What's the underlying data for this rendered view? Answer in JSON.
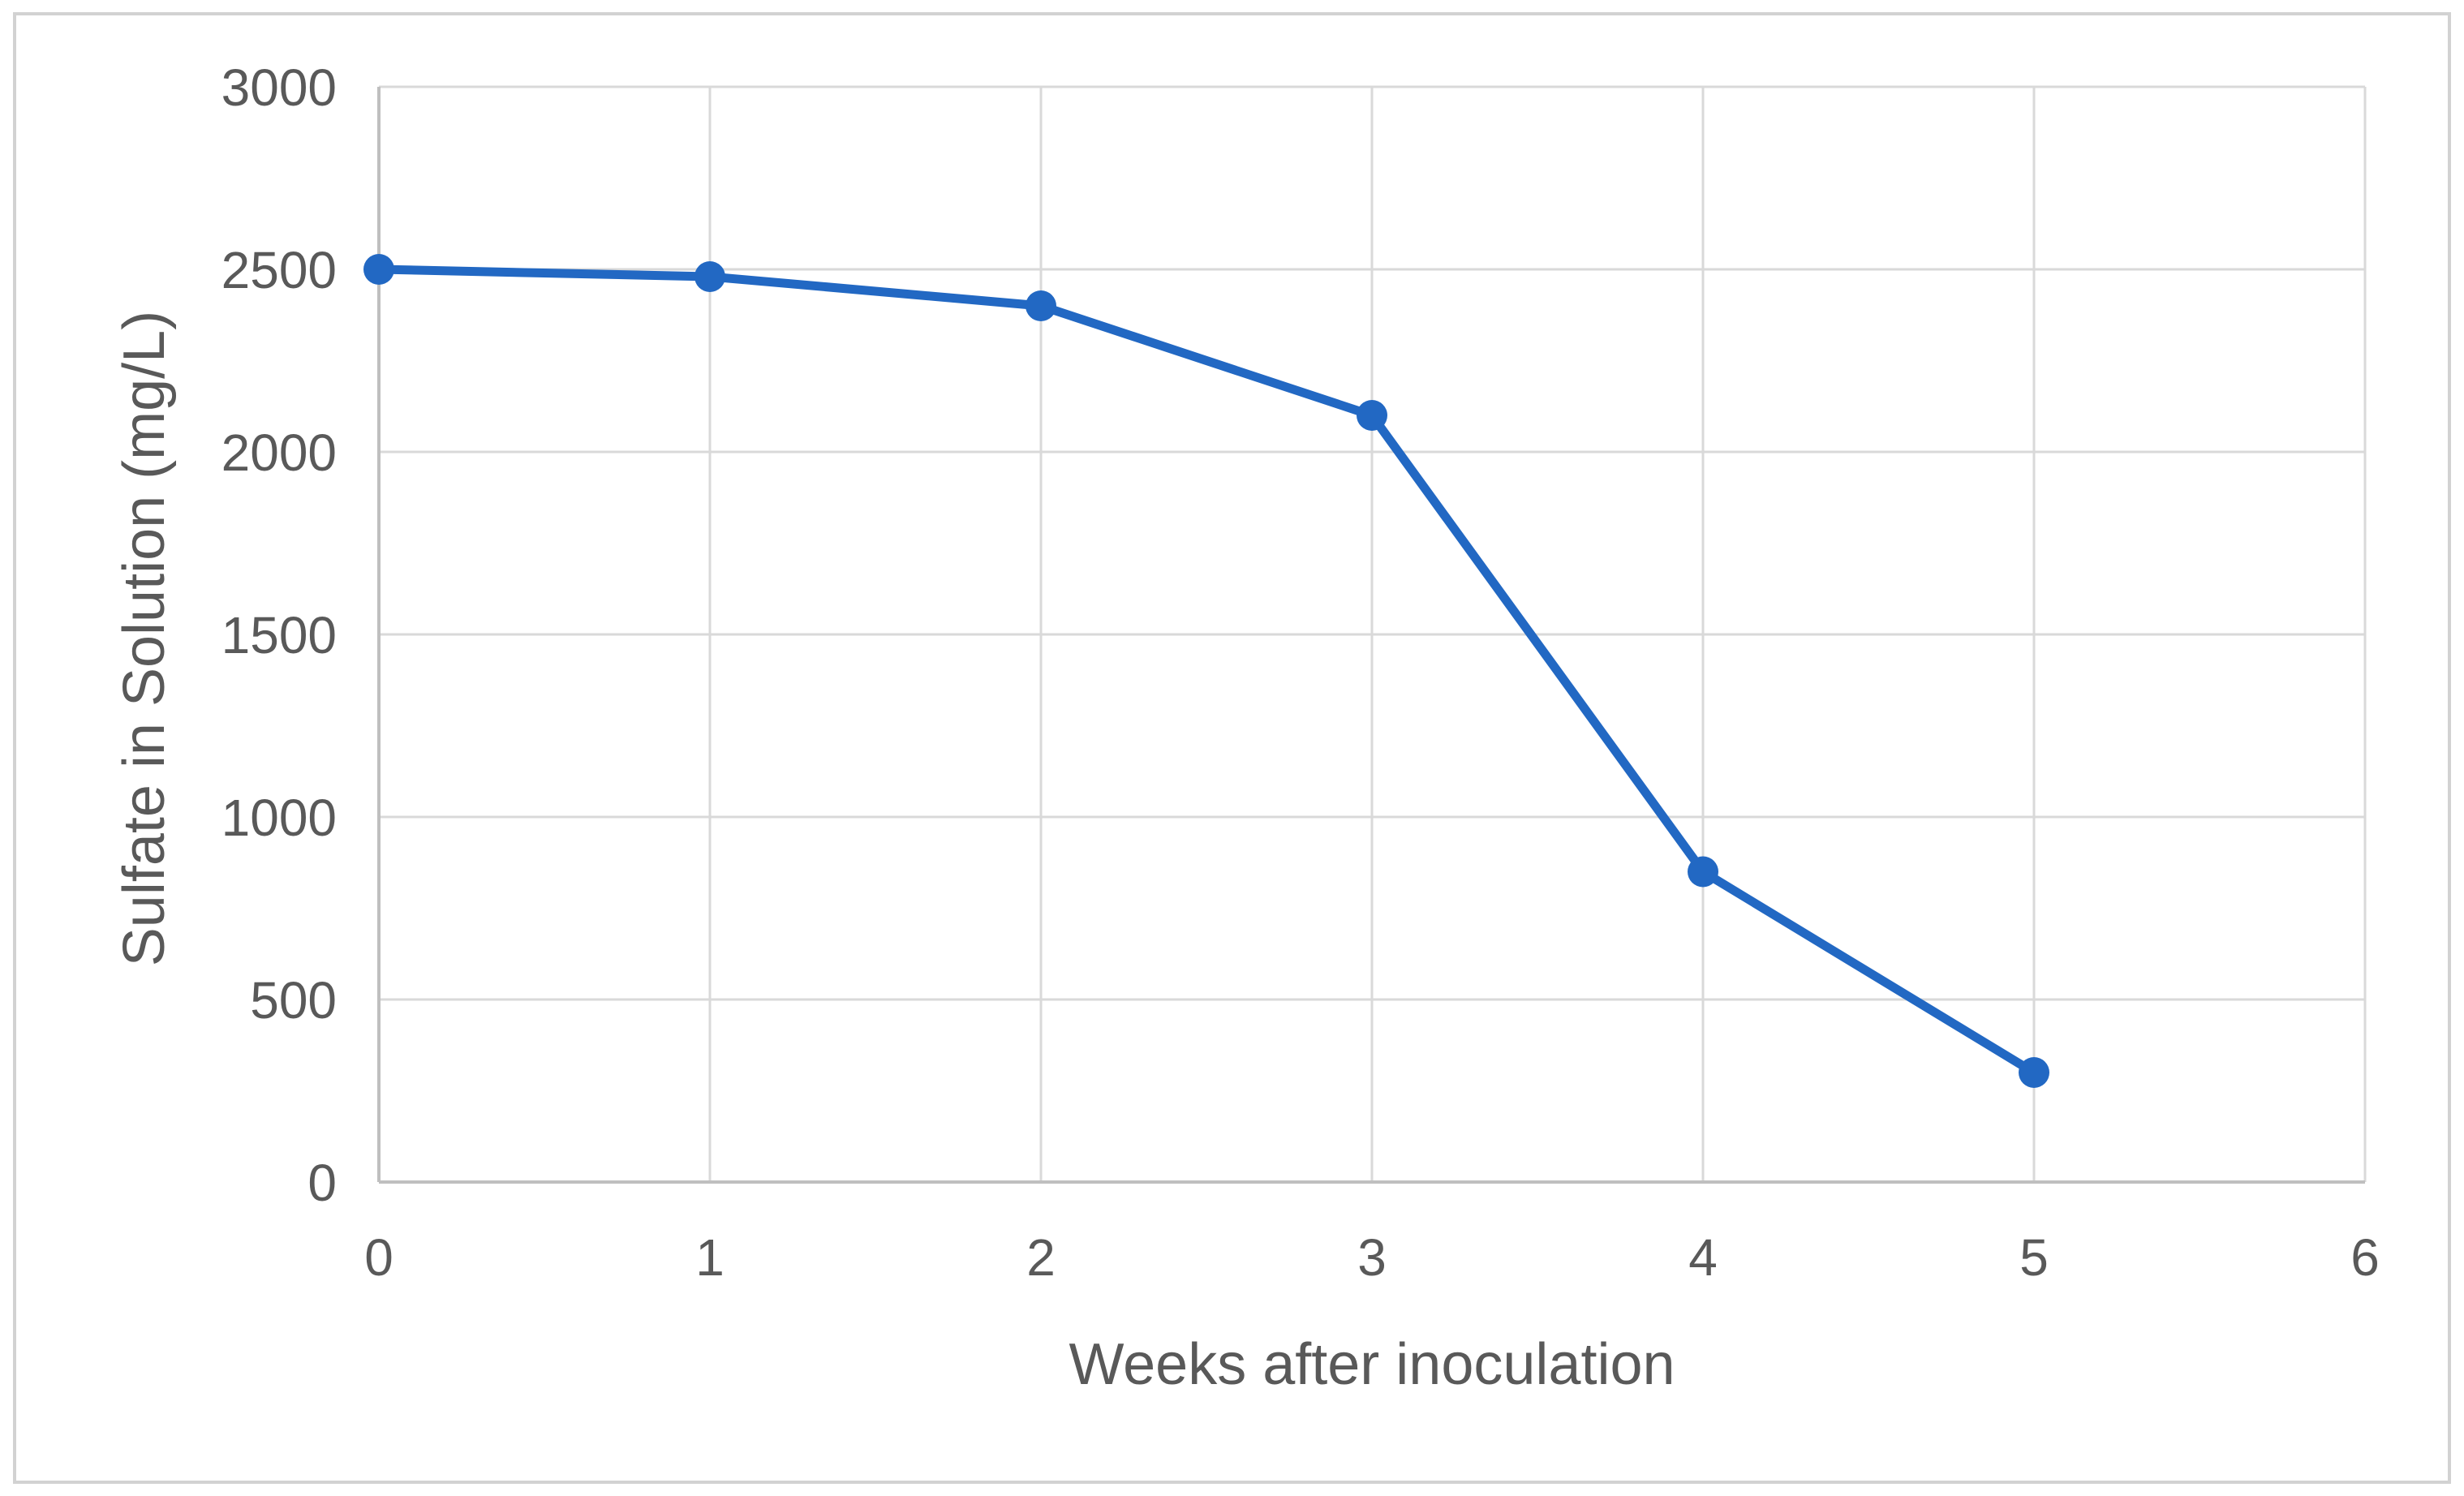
{
  "chart_data": {
    "type": "line",
    "xlabel": "Weeks after inoculation",
    "ylabel": "Sulfate in Solution (mg/L)",
    "x": [
      0,
      1,
      2,
      3,
      4,
      5
    ],
    "y": [
      2500,
      2480,
      2400,
      2100,
      850,
      300
    ],
    "xlim": [
      0,
      6
    ],
    "ylim": [
      0,
      3000
    ],
    "xticks": [
      0,
      1,
      2,
      3,
      4,
      5,
      6
    ],
    "yticks": [
      0,
      500,
      1000,
      1500,
      2000,
      2500,
      3000
    ],
    "xtick_labels": [
      "0",
      "1",
      "2",
      "3",
      "4",
      "5",
      "6"
    ],
    "ytick_labels": [
      "0",
      "500",
      "1000",
      "1500",
      "2000",
      "2500",
      "3000"
    ],
    "grid": true,
    "legend": false,
    "line_color": "#2268C3",
    "marker": "circle",
    "gridline_color": "#D9D9D9",
    "axis_color": "#BFBFBF",
    "text_color": "#595959",
    "background_color": "#FFFFFF",
    "border_color": "#D2D2D2"
  }
}
